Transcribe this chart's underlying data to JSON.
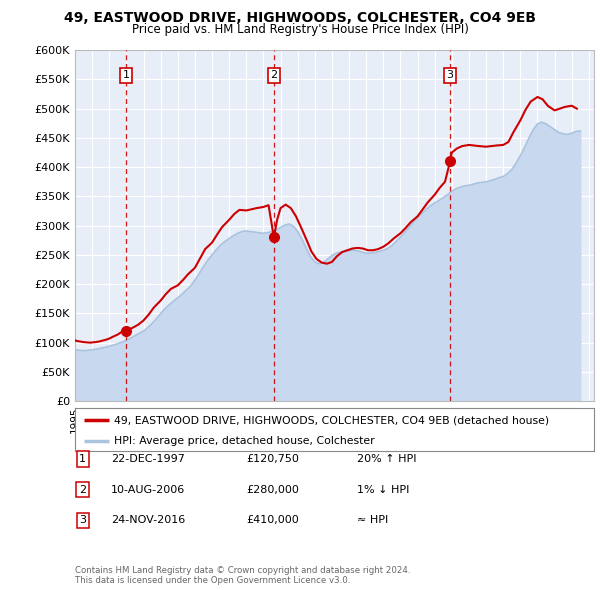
{
  "title1": "49, EASTWOOD DRIVE, HIGHWOODS, COLCHESTER, CO4 9EB",
  "title2": "Price paid vs. HM Land Registry's House Price Index (HPI)",
  "plot_bg": "#e8eef8",
  "hpi_color": "#aac4e0",
  "hpi_fill": "#c8d8ee",
  "price_color": "#cc0000",
  "grid_color": "#ffffff",
  "ylabel_ticks": [
    "£0",
    "£50K",
    "£100K",
    "£150K",
    "£200K",
    "£250K",
    "£300K",
    "£350K",
    "£400K",
    "£450K",
    "£500K",
    "£550K",
    "£600K"
  ],
  "ytick_values": [
    0,
    50000,
    100000,
    150000,
    200000,
    250000,
    300000,
    350000,
    400000,
    450000,
    500000,
    550000,
    600000
  ],
  "xmin": 1995.0,
  "xmax": 2025.3,
  "ymin": 0,
  "ymax": 600000,
  "sale_dates": [
    1997.97,
    2006.61,
    2016.9
  ],
  "sale_prices": [
    120750,
    280000,
    410000
  ],
  "sale_labels": [
    "1",
    "2",
    "3"
  ],
  "vline_dates": [
    1997.97,
    2006.61,
    2016.9
  ],
  "legend_line1": "49, EASTWOOD DRIVE, HIGHWOODS, COLCHESTER, CO4 9EB (detached house)",
  "legend_line2": "HPI: Average price, detached house, Colchester",
  "table_entries": [
    {
      "num": "1",
      "date": "22-DEC-1997",
      "price": "£120,750",
      "change": "20% ↑ HPI"
    },
    {
      "num": "2",
      "date": "10-AUG-2006",
      "price": "£280,000",
      "change": "1% ↓ HPI"
    },
    {
      "num": "3",
      "date": "24-NOV-2016",
      "price": "£410,000",
      "change": "≈ HPI"
    }
  ],
  "footer": "Contains HM Land Registry data © Crown copyright and database right 2024.\nThis data is licensed under the Open Government Licence v3.0.",
  "hpi_data_x": [
    1995.0,
    1995.25,
    1995.5,
    1995.75,
    1996.0,
    1996.25,
    1996.5,
    1996.75,
    1997.0,
    1997.25,
    1997.5,
    1997.75,
    1998.0,
    1998.25,
    1998.5,
    1998.75,
    1999.0,
    1999.25,
    1999.5,
    1999.75,
    2000.0,
    2000.25,
    2000.5,
    2000.75,
    2001.0,
    2001.25,
    2001.5,
    2001.75,
    2002.0,
    2002.25,
    2002.5,
    2002.75,
    2003.0,
    2003.25,
    2003.5,
    2003.75,
    2004.0,
    2004.25,
    2004.5,
    2004.75,
    2005.0,
    2005.25,
    2005.5,
    2005.75,
    2006.0,
    2006.25,
    2006.5,
    2006.75,
    2007.0,
    2007.25,
    2007.5,
    2007.75,
    2008.0,
    2008.25,
    2008.5,
    2008.75,
    2009.0,
    2009.25,
    2009.5,
    2009.75,
    2010.0,
    2010.25,
    2010.5,
    2010.75,
    2011.0,
    2011.25,
    2011.5,
    2011.75,
    2012.0,
    2012.25,
    2012.5,
    2012.75,
    2013.0,
    2013.25,
    2013.5,
    2013.75,
    2014.0,
    2014.25,
    2014.5,
    2014.75,
    2015.0,
    2015.25,
    2015.5,
    2015.75,
    2016.0,
    2016.25,
    2016.5,
    2016.75,
    2017.0,
    2017.25,
    2017.5,
    2017.75,
    2018.0,
    2018.25,
    2018.5,
    2018.75,
    2019.0,
    2019.25,
    2019.5,
    2019.75,
    2020.0,
    2020.25,
    2020.5,
    2020.75,
    2021.0,
    2021.25,
    2021.5,
    2021.75,
    2022.0,
    2022.25,
    2022.5,
    2022.75,
    2023.0,
    2023.25,
    2023.5,
    2023.75,
    2024.0,
    2024.25,
    2024.5
  ],
  "hpi_data_y": [
    88000,
    87000,
    86500,
    87000,
    88000,
    89000,
    90500,
    92000,
    94000,
    96000,
    98500,
    101000,
    104000,
    108000,
    112000,
    116000,
    120000,
    126000,
    133000,
    141000,
    150000,
    158000,
    165000,
    171000,
    177000,
    183000,
    190000,
    197000,
    207000,
    218000,
    230000,
    241000,
    250000,
    259000,
    267000,
    273000,
    278000,
    283000,
    287000,
    290000,
    291000,
    290000,
    289000,
    288000,
    287000,
    288000,
    290000,
    293000,
    297000,
    301000,
    303000,
    299000,
    290000,
    277000,
    261000,
    247000,
    238000,
    235000,
    237000,
    243000,
    249000,
    253000,
    255000,
    256000,
    257000,
    258000,
    257000,
    255000,
    253000,
    253000,
    254000,
    256000,
    258000,
    261000,
    266000,
    273000,
    281000,
    289000,
    297000,
    306000,
    314000,
    321000,
    328000,
    334000,
    339000,
    343000,
    348000,
    353000,
    359000,
    363000,
    366000,
    368000,
    369000,
    371000,
    373000,
    374000,
    375000,
    377000,
    379000,
    382000,
    384000,
    389000,
    396000,
    407000,
    420000,
    434000,
    450000,
    464000,
    474000,
    477000,
    474000,
    469000,
    464000,
    459000,
    457000,
    456000,
    458000,
    461000,
    462000
  ],
  "price_data_x": [
    1995.0,
    1995.1,
    1995.3,
    1995.5,
    1995.7,
    1995.9,
    1996.0,
    1996.2,
    1996.4,
    1996.6,
    1996.8,
    1997.0,
    1997.2,
    1997.5,
    1997.7,
    1997.97,
    1998.1,
    1998.4,
    1998.7,
    1999.0,
    1999.3,
    1999.6,
    2000.0,
    2000.3,
    2000.6,
    2001.0,
    2001.3,
    2001.6,
    2002.0,
    2002.3,
    2002.6,
    2003.0,
    2003.3,
    2003.6,
    2004.0,
    2004.3,
    2004.6,
    2005.0,
    2005.3,
    2005.6,
    2006.0,
    2006.3,
    2006.61,
    2006.8,
    2007.0,
    2007.3,
    2007.6,
    2007.9,
    2008.2,
    2008.5,
    2008.8,
    2009.1,
    2009.4,
    2009.7,
    2010.0,
    2010.3,
    2010.6,
    2010.9,
    2011.2,
    2011.5,
    2011.8,
    2012.1,
    2012.4,
    2012.7,
    2013.0,
    2013.3,
    2013.6,
    2014.0,
    2014.3,
    2014.6,
    2015.0,
    2015.3,
    2015.6,
    2016.0,
    2016.3,
    2016.6,
    2016.9,
    2017.0,
    2017.3,
    2017.6,
    2018.0,
    2018.3,
    2018.6,
    2019.0,
    2019.3,
    2019.6,
    2020.0,
    2020.3,
    2020.6,
    2021.0,
    2021.3,
    2021.6,
    2022.0,
    2022.3,
    2022.6,
    2023.0,
    2023.3,
    2023.6,
    2024.0,
    2024.3
  ],
  "price_data_y": [
    104000,
    103000,
    102000,
    101000,
    100500,
    100000,
    100500,
    101000,
    102000,
    103500,
    105000,
    107000,
    110000,
    114000,
    118000,
    120750,
    122000,
    126000,
    131000,
    138000,
    148000,
    160000,
    172000,
    183000,
    192000,
    198000,
    207000,
    217000,
    228000,
    244000,
    260000,
    271000,
    285000,
    298000,
    310000,
    320000,
    327000,
    326000,
    328000,
    330000,
    332000,
    335000,
    280000,
    310000,
    330000,
    336000,
    330000,
    316000,
    297000,
    277000,
    256000,
    243000,
    237000,
    235000,
    238000,
    248000,
    255000,
    258000,
    261000,
    262000,
    261000,
    258000,
    258000,
    260000,
    264000,
    270000,
    278000,
    287000,
    296000,
    306000,
    316000,
    328000,
    340000,
    353000,
    365000,
    375000,
    410000,
    425000,
    432000,
    436000,
    438000,
    437000,
    436000,
    435000,
    436000,
    437000,
    438000,
    443000,
    460000,
    480000,
    498000,
    512000,
    520000,
    516000,
    505000,
    497000,
    500000,
    503000,
    505000,
    500000
  ]
}
